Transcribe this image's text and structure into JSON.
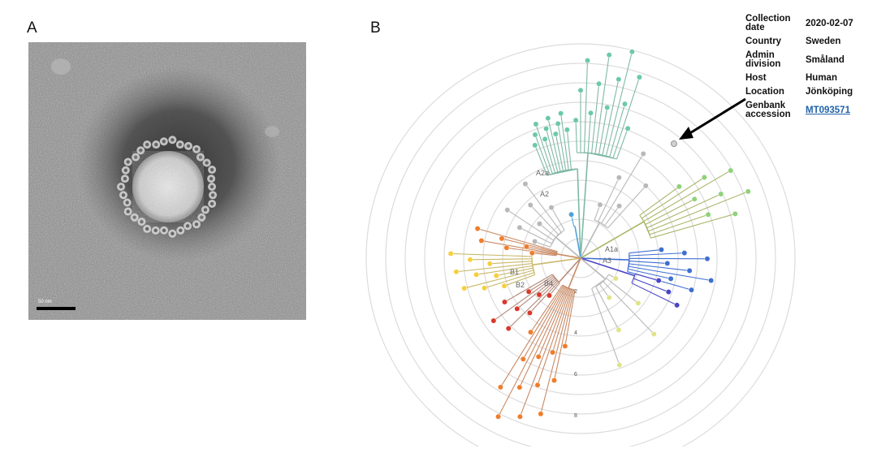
{
  "panels": {
    "a_label": "A",
    "b_label": "B"
  },
  "micrograph": {
    "scale_bar_label": "50 nm"
  },
  "tree": {
    "ring_labels": [
      "2",
      "4",
      "6",
      "8"
    ],
    "clade_labels": {
      "a2a": "A2a",
      "a2": "A2",
      "a1a": "A1a",
      "a3": "A3",
      "b1": "B1",
      "b2": "B2",
      "b4": "B4"
    },
    "colors": {
      "teal": "#6cc9a8",
      "teal_line": "#7fb9a6",
      "grey": "#b8b8b8",
      "blue": "#3f6fd0",
      "indigo": "#4a45c6",
      "lightgreen": "#8ed27a",
      "olive": "#aab66a",
      "orange": "#f07d2a",
      "yellow": "#f6cf3c",
      "red": "#d9382c",
      "brown": "#c98a64",
      "a2_blue": "#4da3d8"
    }
  },
  "metadata": {
    "rows": [
      {
        "key": "Collection date",
        "value": "2020-02-07"
      },
      {
        "key": "Country",
        "value": "Sweden"
      },
      {
        "key": "Admin division",
        "value": "Småland"
      },
      {
        "key": "Host",
        "value": "Human"
      },
      {
        "key": "Location",
        "value": "Jönköping"
      },
      {
        "key": "Genbank accession",
        "value": "MT093571"
      }
    ],
    "link_color": "#1f62a8"
  }
}
